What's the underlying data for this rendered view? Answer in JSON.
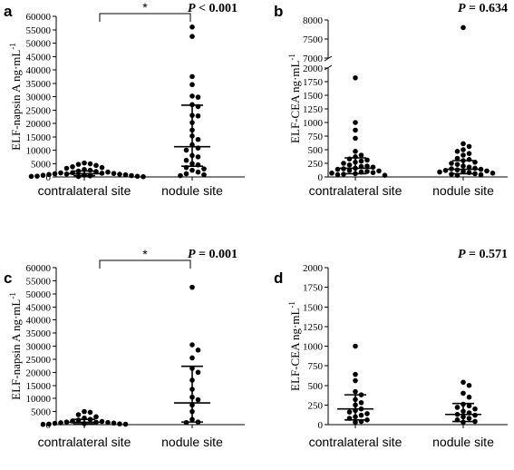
{
  "chart_data": [
    {
      "type": "scatter",
      "panel": "a",
      "ylabel_main": "ELF-napsin A  ng·mL",
      "ylabel_sup": "-1",
      "categories": [
        "contralateral site",
        "nodule site"
      ],
      "yticks": [
        "0",
        "5000",
        "10000",
        "15000",
        "20000",
        "25000",
        "30000",
        "35000",
        "40000",
        "45000",
        "50000",
        "55000",
        "60000"
      ],
      "ylim": [
        0,
        60000
      ],
      "pvalue": "< 0.001",
      "significance": "*",
      "series": [
        {
          "category": "contralateral site",
          "values": [
            5200,
            4900,
            4700,
            4300,
            3800,
            3500,
            3200,
            2800,
            2500,
            2200,
            2000,
            1800,
            1600,
            1500,
            1400,
            1300,
            1200,
            1100,
            1000,
            900,
            800,
            700,
            600,
            500,
            400,
            300,
            250,
            200,
            150,
            100
          ],
          "median": 1200,
          "q1": 500,
          "q3": 2200
        },
        {
          "category": "nodule site",
          "values": [
            56000,
            52500,
            37500,
            34500,
            30200,
            29800,
            27000,
            26300,
            23000,
            22800,
            20300,
            17500,
            15300,
            14000,
            12000,
            10800,
            10000,
            8000,
            7500,
            6200,
            5000,
            4500,
            3500,
            3000,
            2500,
            1800,
            1200,
            800,
            500
          ],
          "median": 11300,
          "q1": 4000,
          "q3": 26800
        }
      ]
    },
    {
      "type": "scatter",
      "panel": "b",
      "ylabel_main": "ELF-CEA  ng·mL",
      "ylabel_sup": "-1",
      "categories": [
        "contralateral site",
        "nodule site"
      ],
      "yticks": [
        "0",
        "250",
        "500",
        "750",
        "1000",
        "1250",
        "1500",
        "1750",
        "2000",
        "7000",
        "7500",
        "8000"
      ],
      "ylim_lower": [
        0,
        2000
      ],
      "ylim_upper": [
        7000,
        8000
      ],
      "pvalue": "= 0.634",
      "series": [
        {
          "category": "contralateral site",
          "values": [
            1820,
            1000,
            860,
            710,
            470,
            400,
            370,
            330,
            310,
            290,
            270,
            250,
            220,
            200,
            190,
            180,
            160,
            150,
            140,
            120,
            110,
            100,
            90,
            80,
            70,
            60,
            50,
            40,
            30
          ],
          "median": 160,
          "q1": 60,
          "q3": 350
        },
        {
          "category": "nodule site",
          "values": [
            7800,
            610,
            560,
            500,
            470,
            430,
            400,
            340,
            320,
            300,
            270,
            250,
            230,
            200,
            180,
            160,
            150,
            140,
            130,
            120,
            110,
            100,
            90,
            80,
            70,
            60,
            50,
            40,
            30
          ],
          "median": 140,
          "q1": 60,
          "q3": 300
        }
      ]
    },
    {
      "type": "scatter",
      "panel": "c",
      "ylabel_main": "ELF-napsin A  ng·mL",
      "ylabel_sup": "-1",
      "categories": [
        "contralateral site",
        "nodule site"
      ],
      "yticks": [
        "0",
        "5000",
        "10000",
        "15000",
        "20000",
        "25000",
        "30000",
        "35000",
        "40000",
        "45000",
        "50000",
        "55000",
        "60000"
      ],
      "ylim": [
        0,
        60000
      ],
      "pvalue": "= 0.001",
      "significance": "*",
      "series": [
        {
          "category": "contralateral site",
          "values": [
            5000,
            4700,
            3800,
            3000,
            2500,
            2000,
            1700,
            1400,
            1200,
            1000,
            900,
            800,
            700,
            600,
            500,
            400,
            300,
            200,
            150,
            100
          ],
          "median": 900,
          "q1": 300,
          "q3": 2000
        },
        {
          "category": "nodule site",
          "values": [
            52500,
            30500,
            28500,
            25500,
            21500,
            20000,
            17000,
            13500,
            10500,
            9500,
            7500,
            5000,
            2000,
            1000,
            800
          ],
          "median": 8300,
          "q1": 1000,
          "q3": 22300
        }
      ]
    },
    {
      "type": "scatter",
      "panel": "d",
      "ylabel_main": "ELF-CEA  ng·mL",
      "ylabel_sup": "-1",
      "categories": [
        "contralateral site",
        "nodule site"
      ],
      "yticks": [
        "0",
        "250",
        "500",
        "750",
        "1000",
        "1250",
        "1500",
        "1750",
        "2000"
      ],
      "ylim": [
        0,
        2000
      ],
      "pvalue": "= 0.571",
      "series": [
        {
          "category": "contralateral site",
          "values": [
            1000,
            640,
            560,
            420,
            380,
            320,
            280,
            250,
            200,
            180,
            160,
            140,
            120,
            100,
            80,
            60,
            40,
            30
          ],
          "median": 200,
          "q1": 60,
          "q3": 380
        },
        {
          "category": "nodule site",
          "values": [
            540,
            500,
            400,
            350,
            260,
            240,
            220,
            200,
            170,
            150,
            130,
            120,
            100,
            80,
            60,
            40,
            30
          ],
          "median": 130,
          "q1": 40,
          "q3": 270
        }
      ]
    }
  ]
}
